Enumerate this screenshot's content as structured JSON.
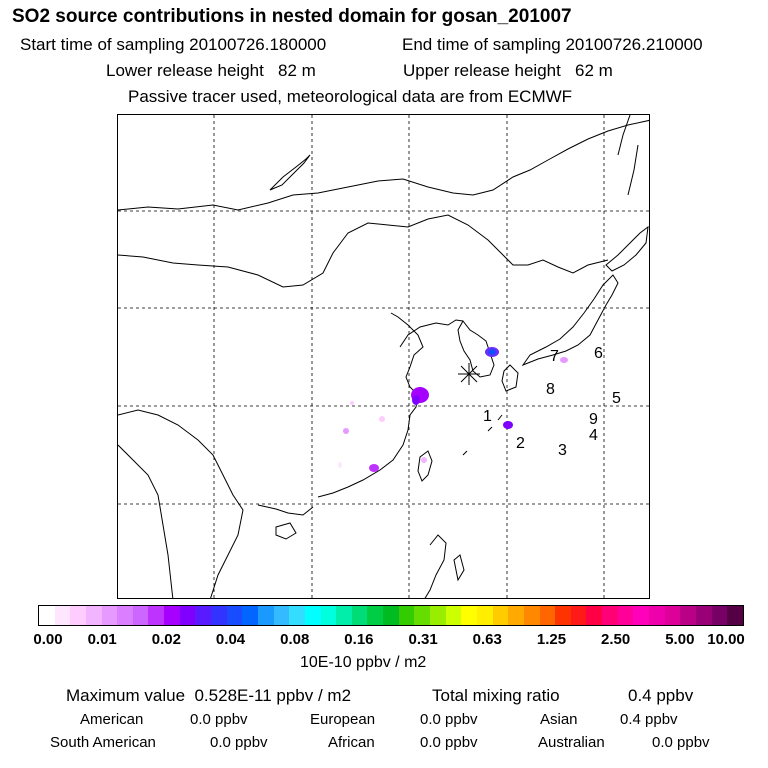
{
  "header": {
    "title": "SO2 source contributions in nested domain for gosan_201007",
    "start_time": "Start time of sampling 20100726.180000",
    "end_time": "End time of sampling 20100726.210000",
    "lower_height": "Lower release height   82 m",
    "upper_height": "Upper release height   62 m",
    "tracer_note": "Passive tracer used, meteorological data are from ECMWF"
  },
  "map": {
    "receptor_symbol": "*",
    "markers": [
      {
        "label": "1"
      },
      {
        "label": "2"
      },
      {
        "label": "3"
      },
      {
        "label": "4"
      },
      {
        "label": "5"
      },
      {
        "label": "6"
      },
      {
        "label": "7"
      },
      {
        "label": "8"
      },
      {
        "label": "9"
      }
    ]
  },
  "colorbar": {
    "ticks": [
      "0.00",
      "0.01",
      "0.02",
      "0.04",
      "0.08",
      "0.16",
      "0.31",
      "0.63",
      "1.25",
      "2.50",
      "5.00",
      "10.00"
    ],
    "unit": "10E-10 ppbv / m2",
    "colors": [
      "#ffffff",
      "#ffe6ff",
      "#ffccff",
      "#f2b3ff",
      "#e699ff",
      "#d97fff",
      "#cc66ff",
      "#bf33ff",
      "#a600ff",
      "#7f00ff",
      "#5a1aff",
      "#3333ff",
      "#1a4cff",
      "#0066ff",
      "#1a99ff",
      "#33bbff",
      "#33ddff",
      "#00ffff",
      "#00ffdd",
      "#00eeaa",
      "#00dd77",
      "#00cc44",
      "#00bb22",
      "#33cc00",
      "#66dd00",
      "#99ee00",
      "#ccff00",
      "#ffff00",
      "#ffee00",
      "#ffcc00",
      "#ffaa00",
      "#ff8800",
      "#ff6600",
      "#ff3300",
      "#ff1a1a",
      "#ff0044",
      "#ff0077",
      "#ff0099",
      "#ff00bb",
      "#ee00aa",
      "#dd0099",
      "#bb0088",
      "#990077",
      "#770066",
      "#550044"
    ]
  },
  "summary": {
    "max_value": "Maximum value  0.528E-11 ppbv / m2",
    "total_label": "Total mixing ratio",
    "total_value": "0.4 ppbv",
    "rows": [
      [
        {
          "name": "American",
          "value": "0.0 ppbv"
        },
        {
          "name": "European",
          "value": "0.0 ppbv"
        },
        {
          "name": "Asian",
          "value": "0.4 ppbv"
        }
      ],
      [
        {
          "name": "South American",
          "value": "0.0 ppbv"
        },
        {
          "name": "African",
          "value": "0.0 ppbv"
        },
        {
          "name": "Australian",
          "value": "0.0 ppbv"
        }
      ]
    ]
  }
}
